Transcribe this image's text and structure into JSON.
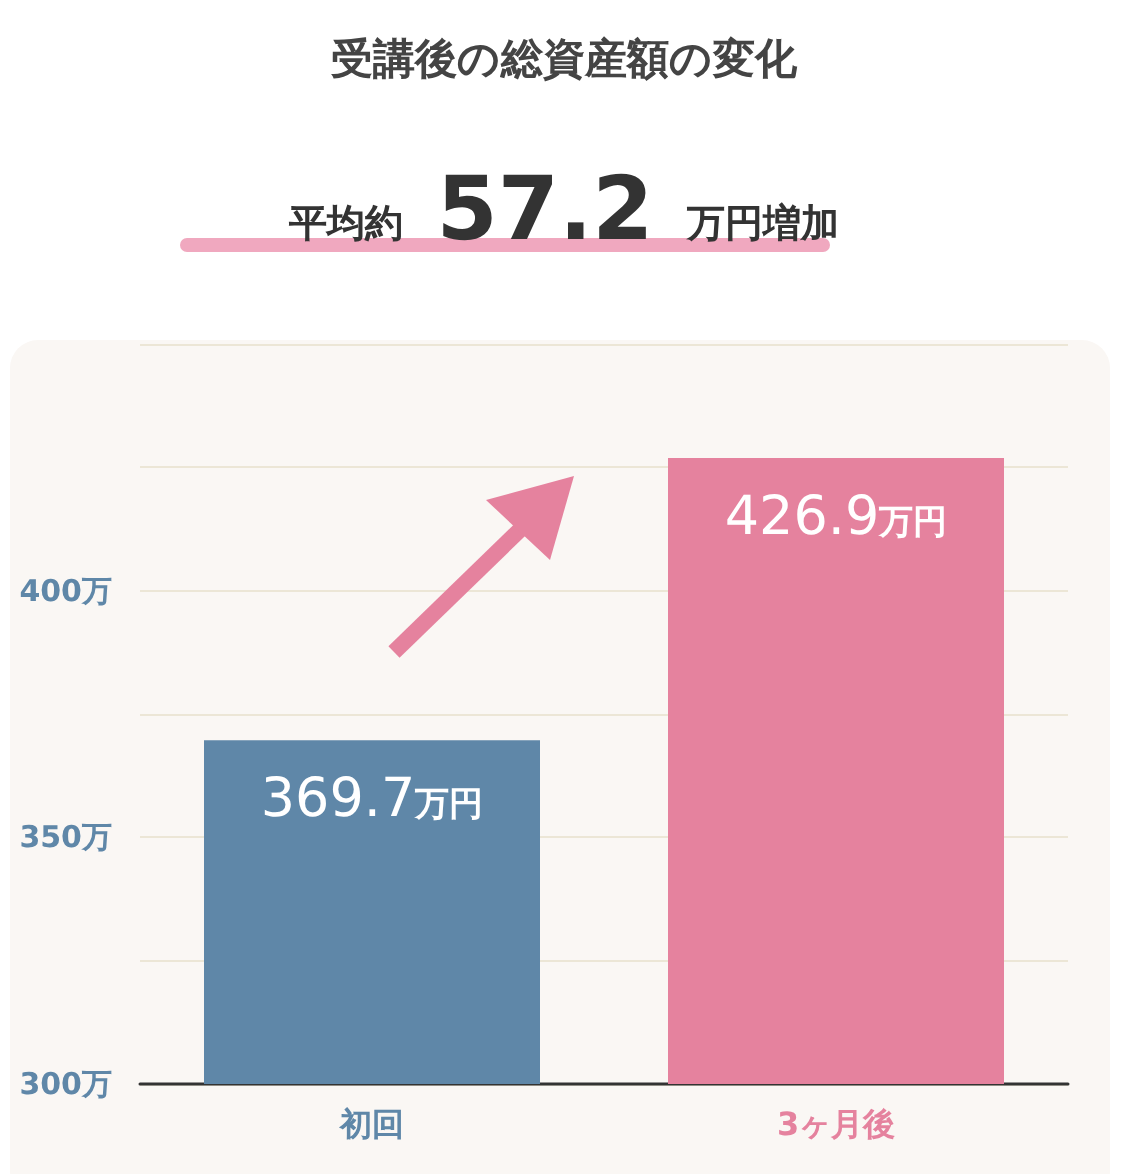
{
  "chart_data": {
    "type": "bar",
    "title": "受講後の総資産額の変化",
    "subtitle": "平均約 57.2 万円増加",
    "categories": [
      "初回",
      "3ヶ月後"
    ],
    "values": [
      369.7,
      426.9
    ],
    "colors": [
      "#5f87a8",
      "#e5829e"
    ],
    "value_labels": [
      "369.7万円",
      "426.9万円"
    ],
    "ylim": [
      300,
      450
    ],
    "yticks": [
      {
        "value": 300,
        "label": "300万"
      },
      {
        "value": 325,
        "label": null
      },
      {
        "value": 350,
        "label": "350万"
      },
      {
        "value": 375,
        "label": null
      },
      {
        "value": 400,
        "label": "400万"
      },
      {
        "value": 425,
        "label": null
      },
      {
        "value": 450,
        "label": null
      }
    ],
    "grid": "y"
  }
}
